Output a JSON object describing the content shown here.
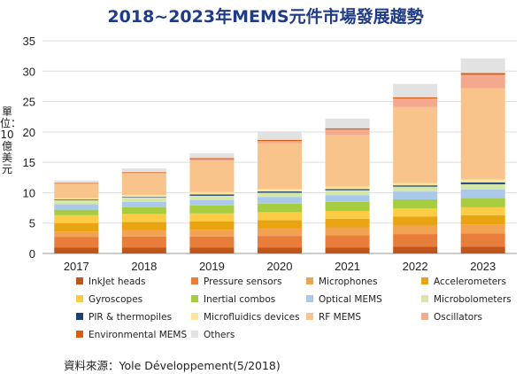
{
  "chart_data": {
    "type": "bar",
    "stacked": true,
    "title": "2018~2023年MEMS元件市場發展趨勢",
    "ylabel": "單位：10億美元",
    "xlabel": "",
    "ylim": [
      0,
      35
    ],
    "yticks": [
      "0",
      "5",
      "10",
      "15",
      "20",
      "25",
      "30",
      "35"
    ],
    "categories": [
      "2017",
      "2018",
      "2019",
      "2020",
      "2021",
      "2022",
      "2023"
    ],
    "grid": true,
    "legend_position": "bottom",
    "series": [
      {
        "name": "InkJet heads",
        "color": "#c0561a",
        "values": [
          1.0,
          1.0,
          1.0,
          1.0,
          1.0,
          1.1,
          1.1
        ]
      },
      {
        "name": "Pressure sensors",
        "color": "#e97d3c",
        "values": [
          1.7,
          1.8,
          1.8,
          1.9,
          2.0,
          2.1,
          2.2
        ]
      },
      {
        "name": "Microphones",
        "color": "#f2a352",
        "values": [
          0.9,
          1.0,
          1.1,
          1.2,
          1.3,
          1.4,
          1.5
        ]
      },
      {
        "name": "Accelerometers",
        "color": "#e8a411",
        "values": [
          1.4,
          1.4,
          1.4,
          1.4,
          1.4,
          1.5,
          1.5
        ]
      },
      {
        "name": "Gyroscopes",
        "color": "#fccd44",
        "values": [
          1.3,
          1.3,
          1.3,
          1.3,
          1.3,
          1.3,
          1.3
        ]
      },
      {
        "name": "Inertial combos",
        "color": "#a6cc3f",
        "values": [
          0.9,
          1.1,
          1.3,
          1.4,
          1.5,
          1.5,
          1.5
        ]
      },
      {
        "name": "Optical MEMS",
        "color": "#a9c8ea",
        "values": [
          0.9,
          0.9,
          0.9,
          1.1,
          1.1,
          1.3,
          1.4
        ]
      },
      {
        "name": "Microbolometers",
        "color": "#d6e8a8",
        "values": [
          0.7,
          0.7,
          0.7,
          0.7,
          0.8,
          0.8,
          0.9
        ]
      },
      {
        "name": "PIR & thermopiles",
        "color": "#1c3f78",
        "values": [
          0.1,
          0.1,
          0.2,
          0.2,
          0.2,
          0.2,
          0.3
        ]
      },
      {
        "name": "Microfluidics devices",
        "color": "#ffe49b",
        "values": [
          0.2,
          0.3,
          0.4,
          0.4,
          0.4,
          0.4,
          0.5
        ]
      },
      {
        "name": "RF MEMS",
        "color": "#f9c38c",
        "values": [
          2.3,
          3.5,
          5.2,
          7.5,
          8.5,
          12.5,
          15.0
        ]
      },
      {
        "name": "Oscillators",
        "color": "#f4a88e",
        "values": [
          0.1,
          0.2,
          0.2,
          0.4,
          0.9,
          1.4,
          2.2
        ]
      },
      {
        "name": "Environmental MEMS",
        "color": "#d55f12",
        "values": [
          0.1,
          0.1,
          0.2,
          0.2,
          0.2,
          0.2,
          0.3
        ]
      },
      {
        "name": "Others",
        "color": "#e2e2e2",
        "values": [
          0.4,
          0.6,
          0.8,
          1.4,
          1.6,
          2.2,
          2.4
        ]
      }
    ]
  },
  "source": "資料來源：Yole Développement(5/2018)"
}
